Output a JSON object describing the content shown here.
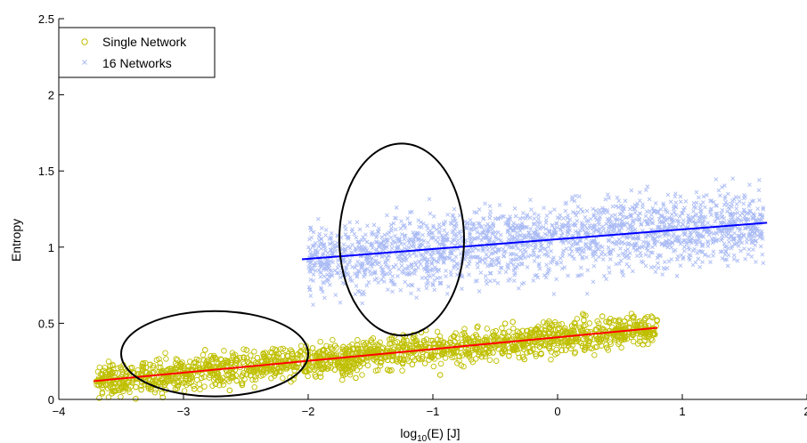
{
  "chart_data": {
    "type": "scatter",
    "title": "",
    "xlabel": "log",
    "xlabel_sub": "10",
    "xlabel_rest": "(E) [J]",
    "ylabel": "Entropy",
    "xlim": [
      -4,
      2
    ],
    "ylim": [
      0,
      2.5
    ],
    "xticks": [
      -4,
      -3,
      -2,
      -1,
      0,
      1,
      2
    ],
    "xtick_labels": [
      "−4",
      "−3",
      "−2",
      "−1",
      "0",
      "1",
      "2"
    ],
    "yticks": [
      0,
      0.5,
      1,
      1.5,
      2,
      2.5
    ],
    "ytick_labels": [
      "0",
      "0.5",
      "1",
      "1.5",
      "2",
      "2.5"
    ],
    "grid": false,
    "legend_position": "top-left",
    "series": [
      {
        "name": "Single Network",
        "marker": "circle",
        "color": "#bfbf00",
        "cluster": {
          "x_range": [
            -3.7,
            0.8
          ],
          "y_center_at_x_min": 0.12,
          "y_center_at_x_max": 0.47,
          "y_spread": 0.14,
          "y_min": 0.0,
          "y_max": 0.78
        },
        "fit_line": {
          "color": "#ff0000",
          "x": [
            -3.72,
            0.8
          ],
          "y": [
            0.12,
            0.47
          ]
        }
      },
      {
        "name": "16 Networks",
        "marker": "x",
        "color": "#aabbf5",
        "cluster": {
          "x_range": [
            -2.0,
            1.65
          ],
          "y_center_at_x_min": 0.92,
          "y_center_at_x_max": 1.16,
          "y_spread": 0.3,
          "y_min": 0.3,
          "y_max": 2.08
        },
        "fit_line": {
          "color": "#0000ff",
          "x": [
            -2.05,
            1.68
          ],
          "y": [
            0.92,
            1.16
          ]
        }
      }
    ],
    "annotations": [
      {
        "type": "ellipse",
        "color": "#000000",
        "center": [
          -2.75,
          0.3
        ],
        "radii": [
          0.75,
          0.28
        ]
      },
      {
        "type": "ellipse",
        "color": "#000000",
        "center": [
          -1.25,
          1.05
        ],
        "radii": [
          0.5,
          0.63
        ]
      }
    ]
  }
}
